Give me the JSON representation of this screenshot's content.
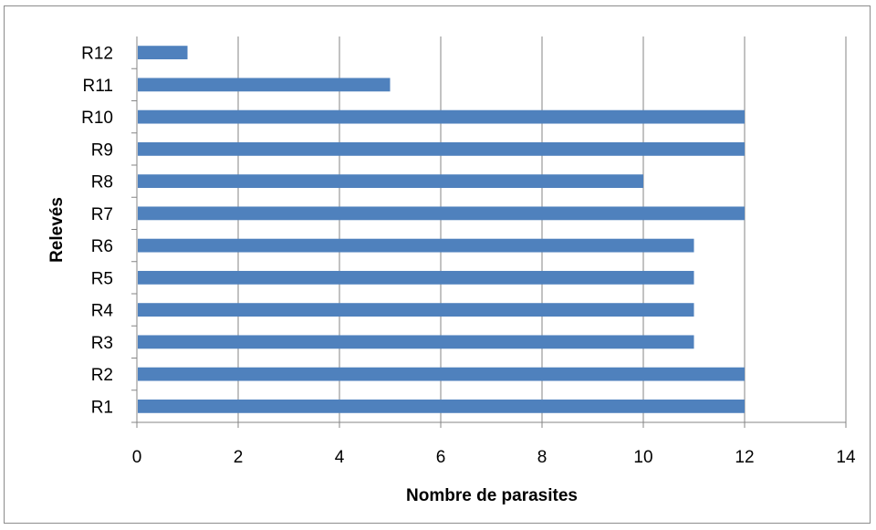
{
  "chart_data": {
    "type": "bar",
    "orientation": "horizontal",
    "categories": [
      "R1",
      "R2",
      "R3",
      "R4",
      "R5",
      "R6",
      "R7",
      "R8",
      "R9",
      "R10",
      "R11",
      "R12"
    ],
    "values": [
      12,
      12,
      11,
      11,
      11,
      11,
      12,
      10,
      12,
      12,
      5,
      1
    ],
    "xlabel": "Nombre de parasites",
    "ylabel": "Relevés",
    "xlim": [
      0,
      14
    ],
    "xticks": [
      "0",
      "2",
      "4",
      "6",
      "8",
      "10",
      "12",
      "14"
    ],
    "grid": "vertical",
    "legend": "none",
    "colors": {
      "bar": "#4f81bd",
      "grid": "#868686",
      "axis": "#868686",
      "border": "#8c8c8c"
    }
  }
}
